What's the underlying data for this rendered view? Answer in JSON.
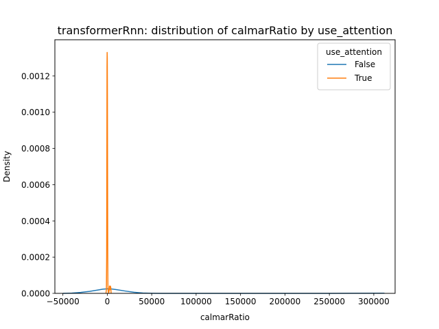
{
  "chart_data": {
    "type": "line",
    "title": "transformerRnn: distribution of calmarRatio by use_attention",
    "xlabel": "calmarRatio",
    "ylabel": "Density",
    "xlim": [
      -59000,
      324000
    ],
    "ylim": [
      0,
      0.0014
    ],
    "x_ticks": [
      -50000,
      0,
      50000,
      100000,
      150000,
      200000,
      250000,
      300000
    ],
    "x_tick_labels": [
      "−50000",
      "0",
      "50000",
      "100000",
      "150000",
      "200000",
      "250000",
      "300000"
    ],
    "y_ticks": [
      0,
      0.0002,
      0.0004,
      0.0006,
      0.0008,
      0.001,
      0.0012
    ],
    "y_tick_labels": [
      "0.0000",
      "0.0002",
      "0.0004",
      "0.0006",
      "0.0008",
      "0.0010",
      "0.0012"
    ],
    "grid": false,
    "legend": {
      "title": "use_attention",
      "placement": "top-right"
    },
    "series": [
      {
        "name": "False",
        "color": "#1f77b4",
        "x": [
          -50000,
          -40000,
          -30000,
          -20000,
          -10000,
          -5000,
          0,
          5000,
          10000,
          20000,
          30000,
          40000,
          50000,
          60000,
          80000,
          100000,
          150000,
          200000,
          250000,
          312000
        ],
        "y": [
          2e-07,
          1.5e-06,
          5e-06,
          1.1e-05,
          1.9e-05,
          2.3e-05,
          2.5e-05,
          2.4e-05,
          2.1e-05,
          1.3e-05,
          6e-06,
          2e-06,
          6e-07,
          2e-07,
          5e-08,
          2e-08,
          1e-08,
          1e-08,
          1e-08,
          1e-06
        ]
      },
      {
        "name": "True",
        "color": "#ff7f0e",
        "x": [
          -1500,
          -1000,
          -700,
          -500,
          -300,
          -150,
          0,
          150,
          300,
          500,
          700,
          1000,
          1500,
          2000,
          2500,
          3000,
          3300,
          3500,
          4000,
          4300
        ],
        "y": [
          0.0,
          2e-05,
          0.0002,
          0.0007,
          0.00125,
          0.00133,
          0.0013,
          0.0011,
          0.0007,
          0.00025,
          5e-05,
          1e-05,
          0.0,
          1e-05,
          4e-05,
          2e-05,
          2e-05,
          4e-05,
          3e-05,
          0.0
        ]
      }
    ]
  }
}
